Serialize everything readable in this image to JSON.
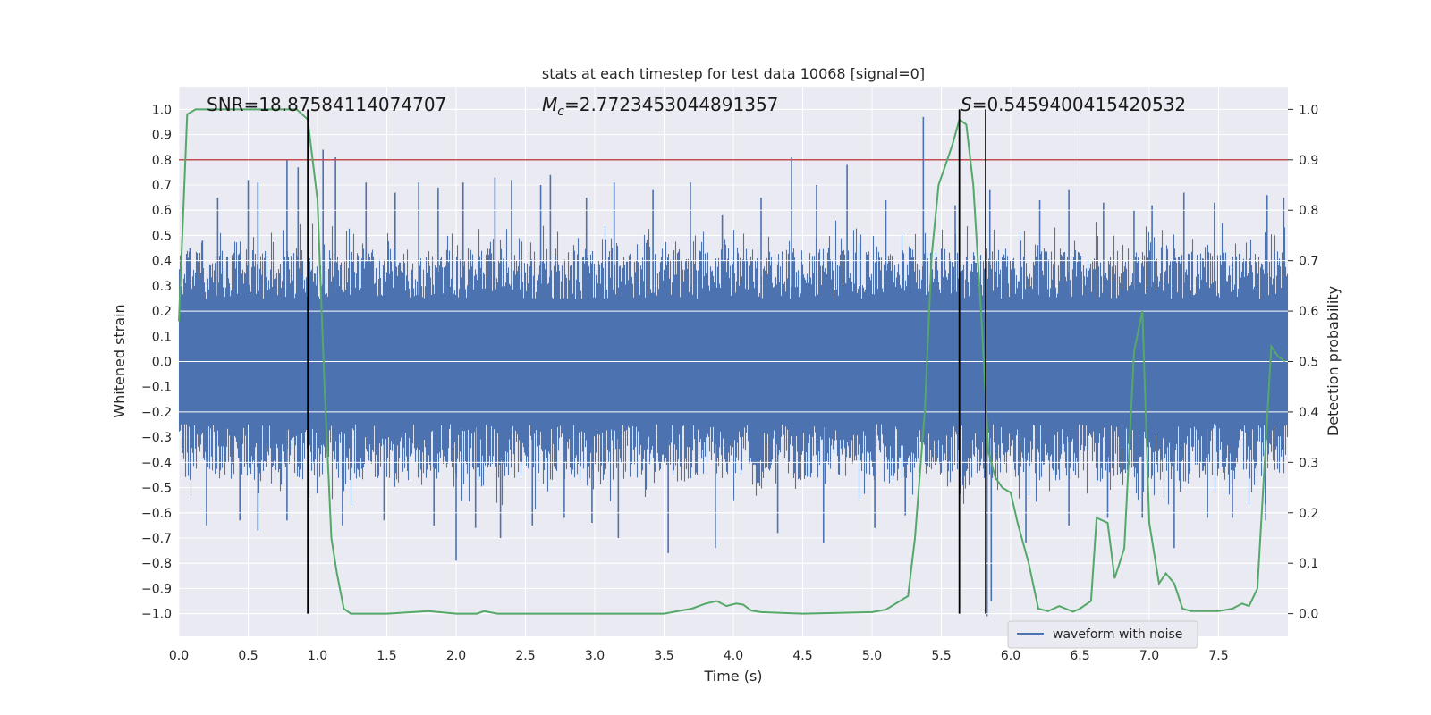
{
  "chart_data": {
    "type": "line",
    "title": "stats at each timestep for test data 10068 [signal=0]",
    "xlabel": "Time (s)",
    "ylabel": "Whitened strain",
    "y2label": "Detection probability",
    "xlim": [
      0.0,
      8.0
    ],
    "ylim": [
      -1.09,
      1.09
    ],
    "y2lim": [
      -0.045,
      1.045
    ],
    "x_ticks": [
      0.0,
      0.5,
      1.0,
      1.5,
      2.0,
      2.5,
      3.0,
      3.5,
      4.0,
      4.5,
      5.0,
      5.5,
      6.0,
      6.5,
      7.0,
      7.5
    ],
    "x_tick_labels": [
      "0.0",
      "0.5",
      "1.0",
      "1.5",
      "2.0",
      "2.5",
      "3.0",
      "3.5",
      "4.0",
      "4.5",
      "5.0",
      "5.5",
      "6.0",
      "6.5",
      "7.0",
      "7.5"
    ],
    "y_ticks": [
      1.0,
      0.9,
      0.8,
      0.7,
      0.6,
      0.5,
      0.4,
      0.3,
      0.2,
      0.1,
      0.0,
      -0.1,
      -0.2,
      -0.3,
      -0.4,
      -0.5,
      -0.6,
      -0.7,
      -0.8,
      -0.9,
      -1.0
    ],
    "y_tick_labels": [
      "1.0",
      "0.9",
      "0.8",
      "0.7",
      "0.6",
      "0.5",
      "0.4",
      "0.3",
      "0.2",
      "0.1",
      "0.0",
      "−0.1",
      "−0.2",
      "−0.3",
      "−0.4",
      "−0.5",
      "−0.6",
      "−0.7",
      "−0.8",
      "−0.9",
      "−1.0"
    ],
    "y2_ticks": [
      1.0,
      0.9,
      0.8,
      0.7,
      0.6,
      0.5,
      0.4,
      0.3,
      0.2,
      0.1,
      0.0
    ],
    "y2_tick_labels": [
      "1.0",
      "0.9",
      "0.8",
      "0.7",
      "0.6",
      "0.5",
      "0.4",
      "0.3",
      "0.2",
      "0.1",
      "0.0"
    ],
    "grid": true,
    "legend": {
      "placement": "lower-right",
      "entries": [
        "waveform with noise"
      ]
    },
    "annotations": {
      "snr": "SNR=18.87584114074707",
      "mc_symbol": "M",
      "mc_subscript": "c",
      "mc_value": "=2.7723453044891357",
      "s_symbol": "S",
      "s_value": "=0.5459400415420532"
    },
    "threshold": {
      "axis": "y2",
      "value": 0.9,
      "color": "#c44e52"
    },
    "vertical_markers_x": [
      0.93,
      5.63,
      5.82
    ],
    "waveform": {
      "name": "waveform with noise",
      "color": "#4c72b0",
      "typical_peak": 0.45,
      "spikes": [
        [
          0.08,
          0.45
        ],
        [
          0.17,
          0.48
        ],
        [
          0.28,
          0.65
        ],
        [
          0.5,
          0.72
        ],
        [
          0.57,
          0.71
        ],
        [
          0.78,
          0.8
        ],
        [
          0.86,
          0.77
        ],
        [
          1.04,
          0.84
        ],
        [
          1.13,
          0.81
        ],
        [
          1.35,
          0.71
        ],
        [
          1.56,
          0.67
        ],
        [
          1.73,
          0.71
        ],
        [
          1.87,
          0.69
        ],
        [
          2.05,
          0.71
        ],
        [
          2.28,
          0.73
        ],
        [
          2.4,
          0.72
        ],
        [
          2.61,
          0.7
        ],
        [
          2.68,
          0.74
        ],
        [
          2.94,
          0.65
        ],
        [
          3.14,
          0.71
        ],
        [
          3.42,
          0.68
        ],
        [
          3.69,
          0.71
        ],
        [
          3.92,
          0.58
        ],
        [
          4.2,
          0.65
        ],
        [
          4.42,
          0.81
        ],
        [
          4.6,
          0.7
        ],
        [
          4.82,
          0.78
        ],
        [
          5.1,
          0.64
        ],
        [
          5.37,
          0.97
        ],
        [
          5.6,
          0.62
        ],
        [
          5.85,
          0.68
        ],
        [
          6.21,
          0.64
        ],
        [
          6.42,
          0.68
        ],
        [
          6.67,
          0.63
        ],
        [
          6.89,
          0.6
        ],
        [
          7.02,
          0.62
        ],
        [
          7.25,
          0.67
        ],
        [
          7.47,
          0.63
        ],
        [
          7.85,
          0.66
        ],
        [
          7.97,
          0.65
        ],
        [
          0.2,
          -0.65
        ],
        [
          0.44,
          -0.63
        ],
        [
          0.57,
          -0.67
        ],
        [
          0.78,
          -0.63
        ],
        [
          1.18,
          -0.65
        ],
        [
          1.48,
          -0.63
        ],
        [
          1.84,
          -0.65
        ],
        [
          2.0,
          -0.79
        ],
        [
          2.14,
          -0.66
        ],
        [
          2.32,
          -0.7
        ],
        [
          2.55,
          -0.65
        ],
        [
          2.78,
          -0.62
        ],
        [
          2.98,
          -0.64
        ],
        [
          3.17,
          -0.7
        ],
        [
          3.53,
          -0.76
        ],
        [
          3.87,
          -0.74
        ],
        [
          4.32,
          -0.68
        ],
        [
          4.65,
          -0.72
        ],
        [
          5.02,
          -0.66
        ],
        [
          5.24,
          -0.61
        ],
        [
          5.83,
          -1.01
        ],
        [
          5.86,
          -0.95
        ],
        [
          6.11,
          -0.72
        ],
        [
          6.42,
          -0.65
        ],
        [
          6.7,
          -0.62
        ],
        [
          6.95,
          -0.62
        ],
        [
          7.18,
          -0.74
        ],
        [
          7.42,
          -0.62
        ],
        [
          7.6,
          -0.62
        ],
        [
          7.84,
          -0.63
        ]
      ]
    },
    "probability": {
      "color": "#55a868",
      "x": [
        0.0,
        0.06,
        0.12,
        0.5,
        0.85,
        0.93,
        1.0,
        1.05,
        1.1,
        1.14,
        1.19,
        1.24,
        1.5,
        1.8,
        2.0,
        2.15,
        2.2,
        2.3,
        2.5,
        3.0,
        3.5,
        3.7,
        3.8,
        3.88,
        3.95,
        4.02,
        4.07,
        4.13,
        4.2,
        4.5,
        5.0,
        5.1,
        5.26,
        5.31,
        5.38,
        5.43,
        5.48,
        5.53,
        5.58,
        5.63,
        5.68,
        5.73,
        5.79,
        5.84,
        5.89,
        5.94,
        6.0,
        6.05,
        6.13,
        6.2,
        6.27,
        6.35,
        6.45,
        6.5,
        6.58,
        6.62,
        6.7,
        6.75,
        6.82,
        6.89,
        6.95,
        7.0,
        7.07,
        7.12,
        7.18,
        7.24,
        7.3,
        7.5,
        7.6,
        7.67,
        7.72,
        7.78,
        7.83,
        7.88,
        7.93,
        7.98
      ],
      "y": [
        0.58,
        0.99,
        1.0,
        1.0,
        1.0,
        0.98,
        0.82,
        0.45,
        0.15,
        0.08,
        0.01,
        0.0,
        0.0,
        0.005,
        0.0,
        0.0,
        0.005,
        0.0,
        0.0,
        0.0,
        0.0,
        0.01,
        0.02,
        0.025,
        0.015,
        0.02,
        0.018,
        0.006,
        0.003,
        0.0,
        0.003,
        0.008,
        0.035,
        0.15,
        0.4,
        0.71,
        0.85,
        0.89,
        0.93,
        0.98,
        0.97,
        0.85,
        0.58,
        0.32,
        0.27,
        0.25,
        0.24,
        0.18,
        0.1,
        0.01,
        0.005,
        0.015,
        0.004,
        0.01,
        0.025,
        0.19,
        0.18,
        0.07,
        0.13,
        0.52,
        0.6,
        0.18,
        0.06,
        0.08,
        0.06,
        0.01,
        0.005,
        0.005,
        0.01,
        0.02,
        0.015,
        0.05,
        0.29,
        0.53,
        0.51,
        0.5
      ]
    }
  }
}
